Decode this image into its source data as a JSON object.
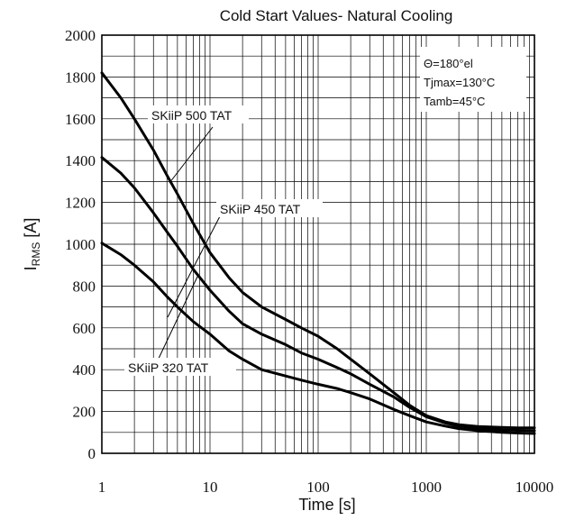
{
  "chart_data": {
    "type": "line",
    "title": "Cold Start Values- Natural Cooling",
    "xlabel": "Time [s]",
    "ylabel": {
      "main": "I",
      "sub": "RMS",
      "unit": " [A]"
    },
    "x_scale": "log",
    "xlim": [
      1,
      10000
    ],
    "ylim": [
      0,
      2000
    ],
    "x_ticks": [
      "1",
      "10",
      "100",
      "1000",
      "10000"
    ],
    "y_ticks": [
      "0",
      "200",
      "400",
      "600",
      "800",
      "1000",
      "1200",
      "1400",
      "1600",
      "1800",
      "2000"
    ],
    "grid": true,
    "annotations": [
      "Θ=180°el",
      "Tjmax=130°C",
      "Tamb=45°C"
    ],
    "series": [
      {
        "name": "SKiiP 500 TAT",
        "x": [
          1,
          1.5,
          2,
          3,
          4,
          5,
          7,
          10,
          15,
          20,
          30,
          50,
          70,
          100,
          150,
          200,
          300,
          500,
          700,
          1000,
          1500,
          2000,
          3000,
          5000,
          7000,
          10000
        ],
        "y": [
          1820,
          1700,
          1600,
          1450,
          1330,
          1240,
          1100,
          960,
          840,
          770,
          700,
          640,
          600,
          560,
          500,
          450,
          380,
          290,
          230,
          180,
          150,
          137,
          128,
          124,
          122,
          122
        ]
      },
      {
        "name": "SKiiP 450 TAT",
        "x": [
          1,
          1.5,
          2,
          3,
          4,
          5,
          7,
          10,
          15,
          20,
          30,
          50,
          70,
          100,
          150,
          200,
          300,
          500,
          700,
          1000,
          1500,
          2000,
          3000,
          5000,
          7000,
          10000
        ],
        "y": [
          1415,
          1340,
          1270,
          1150,
          1060,
          990,
          880,
          780,
          680,
          620,
          570,
          520,
          480,
          450,
          410,
          380,
          330,
          270,
          220,
          175,
          145,
          130,
          120,
          112,
          110,
          108
        ]
      },
      {
        "name": "SKiiP 320 TAT",
        "x": [
          1,
          1.5,
          2,
          3,
          4,
          5,
          7,
          10,
          15,
          20,
          30,
          50,
          70,
          100,
          150,
          200,
          300,
          500,
          700,
          1000,
          1500,
          2000,
          3000,
          5000,
          7000,
          10000
        ],
        "y": [
          1005,
          950,
          900,
          820,
          750,
          700,
          630,
          570,
          490,
          450,
          400,
          370,
          350,
          330,
          310,
          290,
          260,
          210,
          180,
          150,
          130,
          118,
          108,
          100,
          97,
          95
        ]
      }
    ]
  }
}
